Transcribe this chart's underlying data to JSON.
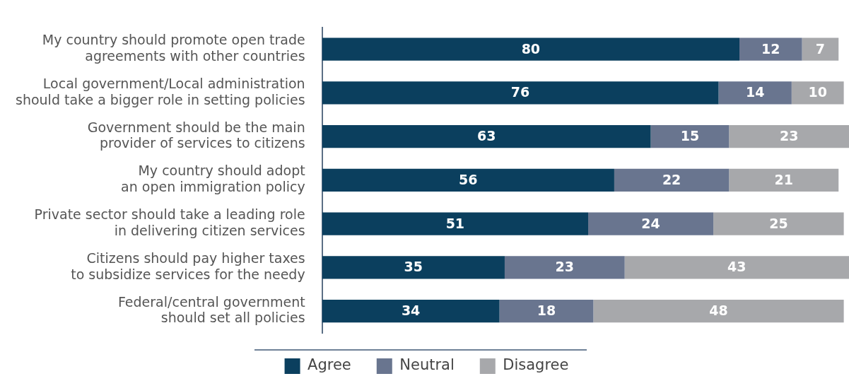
{
  "chart_data": {
    "type": "bar",
    "orientation": "horizontal",
    "stacked": true,
    "data_labels": true,
    "legend": "bottom",
    "grid": false,
    "categories": [
      "My country should promote open trade\nagreements with other countries",
      "Local government/Local administration\nshould take a bigger role in setting policies",
      "Government should be the main\nprovider of services to citizens",
      "My country should adopt\nan open immigration policy",
      "Private sector should take a leading role\nin delivering citizen services",
      "Citizens should pay higher taxes\nto subsidize services for the needy",
      "Federal/central government\nshould set all policies"
    ],
    "series": [
      {
        "name": "Agree",
        "color": "#0b3f5e",
        "values": [
          80,
          76,
          63,
          56,
          51,
          35,
          34
        ]
      },
      {
        "name": "Neutral",
        "color": "#69758f",
        "values": [
          12,
          14,
          15,
          22,
          24,
          23,
          18
        ]
      },
      {
        "name": "Disagree",
        "color": "#a7a8ab",
        "values": [
          7,
          10,
          23,
          21,
          25,
          43,
          48
        ]
      }
    ]
  }
}
